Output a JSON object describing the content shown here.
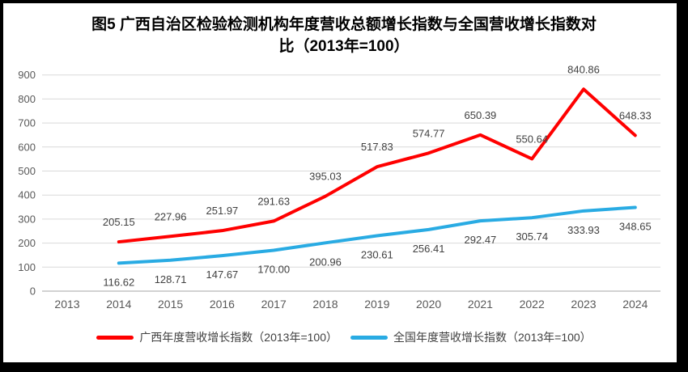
{
  "title": {
    "line1": "图5  广西自治区检验检测机构年度营收总额增长指数与全国营收增长指数对",
    "line2": "比（2013年=100）"
  },
  "chart_data": {
    "type": "line",
    "title": "图5 广西自治区检验检测机构年度营收总额增长指数与全国营收增长指数对比（2013年=100）",
    "categories": [
      "2013",
      "2014",
      "2015",
      "2016",
      "2017",
      "2018",
      "2019",
      "2020",
      "2021",
      "2022",
      "2023",
      "2024"
    ],
    "series": [
      {
        "id": "guangxi",
        "name": "广西年度营收增长指数（2013年=100）",
        "color": "#FF0000",
        "label_position": "above",
        "values": [
          null,
          205.15,
          227.96,
          251.97,
          291.63,
          395.03,
          517.83,
          574.77,
          650.39,
          550.64,
          840.86,
          648.33
        ],
        "labels": [
          "",
          "205.15",
          "227.96",
          "251.97",
          "291.63",
          "395.03",
          "517.83",
          "574.77",
          "650.39",
          "550.64",
          "840.86",
          "648.33"
        ]
      },
      {
        "id": "national",
        "name": "全国年度营收增长指数（2013年=100）",
        "color": "#29ABE3",
        "label_position": "below",
        "values": [
          null,
          116.62,
          128.71,
          147.67,
          170.0,
          200.96,
          230.61,
          256.41,
          292.47,
          305.74,
          333.93,
          348.65
        ],
        "labels": [
          "",
          "116.62",
          "128.71",
          "147.67",
          "170.00",
          "200.96",
          "230.61",
          "256.41",
          "292.47",
          "305.74",
          "333.93",
          "348.65"
        ]
      }
    ],
    "ylim": [
      0,
      900
    ],
    "ytick_step": 100,
    "y_ticks": [
      0,
      100,
      200,
      300,
      400,
      500,
      600,
      700,
      800,
      900
    ],
    "grid": true,
    "legend_position": "bottom",
    "colors": {
      "grid_line": "#D9D9D9",
      "axis_line": "#C3C3C3",
      "tick_text": "#595959",
      "data_label_text": "#404040",
      "title_text": "#000000"
    }
  }
}
